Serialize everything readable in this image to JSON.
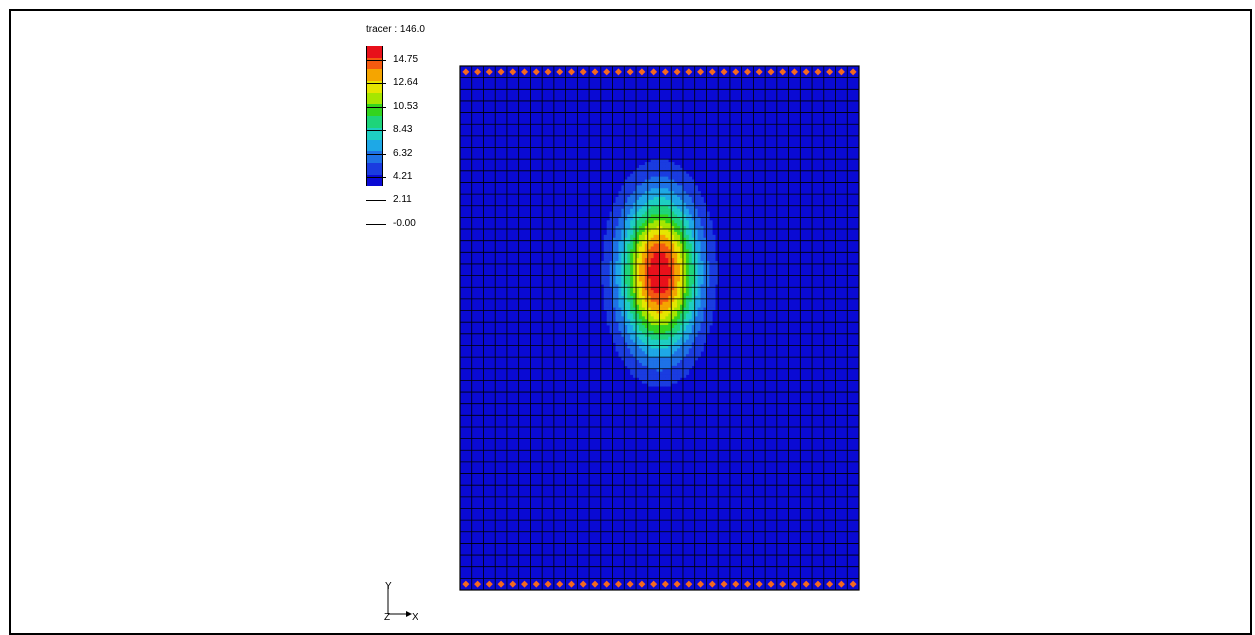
{
  "legend": {
    "title": "tracer : 146.0",
    "labels": [
      "14.75",
      "12.64",
      "10.53",
      "8.43",
      "6.32",
      "4.21",
      "2.11",
      "-0.00"
    ],
    "colors": [
      "#e8101a",
      "#f55a10",
      "#f5a500",
      "#e6e600",
      "#a6e600",
      "#33d41e",
      "#1ed47a",
      "#1ecfc2",
      "#1ea8e6",
      "#1e72e6",
      "#1a3ce0",
      "#0a0ad4"
    ]
  },
  "axes": {
    "y_label": "Y",
    "z_label": "Z",
    "x_label": "X"
  },
  "mesh": {
    "columns": 34,
    "rows": 45,
    "background_color": "#0a0ad4",
    "boundary_marker_color": "#f56a1e",
    "plume": {
      "center_column": 17.0,
      "center_row": 17.8,
      "peak_value": 16.0,
      "spread_columns": 2.2,
      "spread_rows": 4.4
    }
  }
}
